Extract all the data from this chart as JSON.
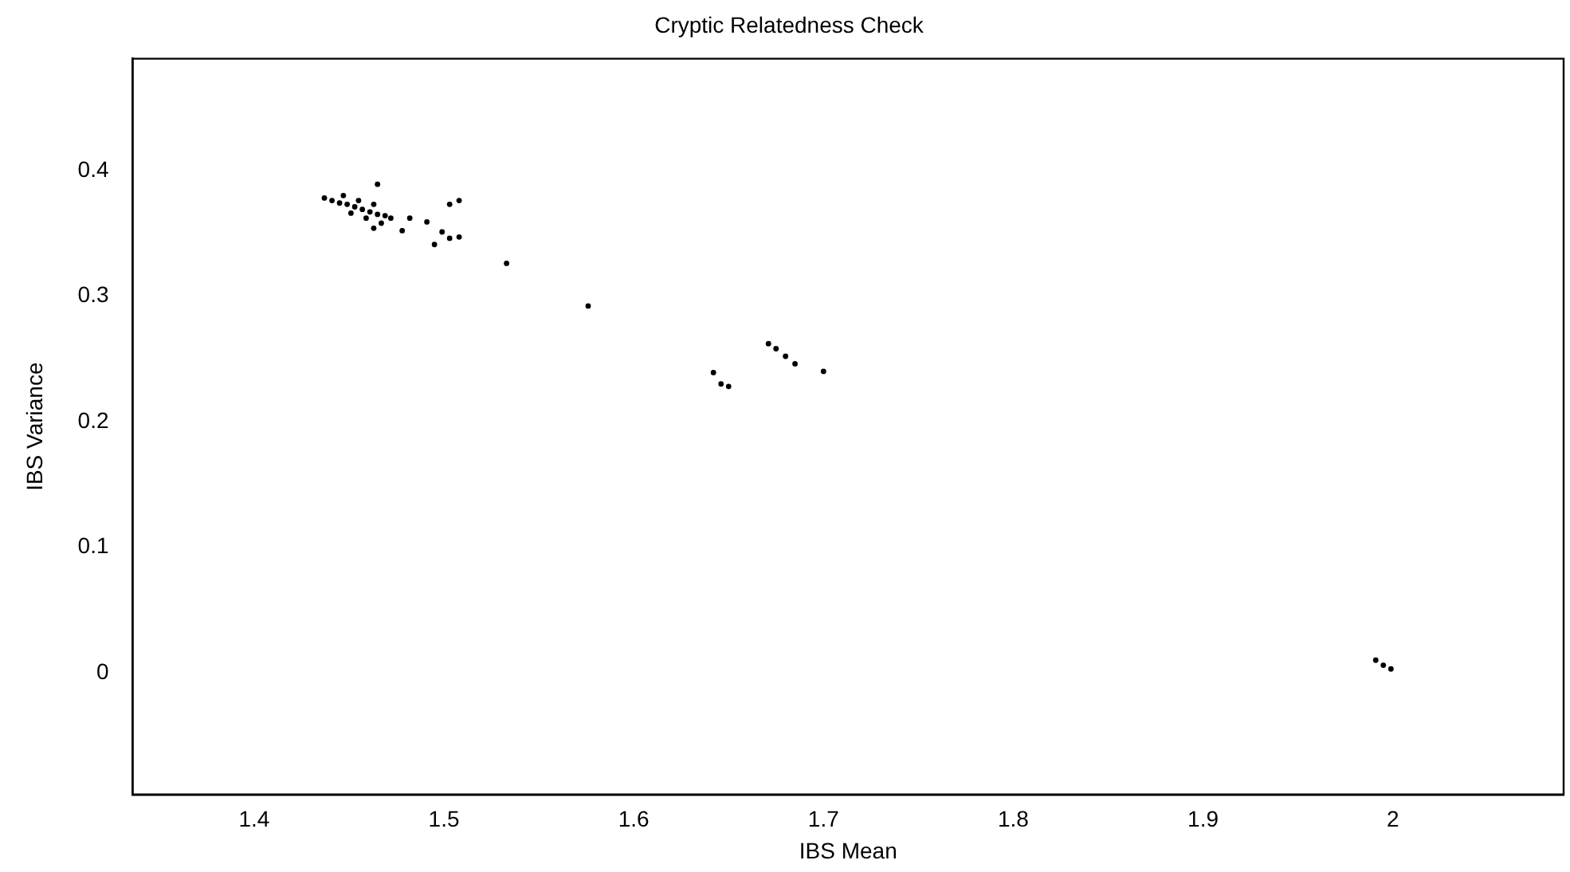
{
  "chart_data": {
    "type": "scatter",
    "title": "Cryptic Relatedness Check",
    "xlabel": "IBS Mean",
    "ylabel": "IBS Variance",
    "x": [
      1.437,
      1.441,
      1.445,
      1.449,
      1.453,
      1.457,
      1.461,
      1.465,
      1.469,
      1.472,
      1.447,
      1.455,
      1.463,
      1.451,
      1.459,
      1.467,
      1.465,
      1.463,
      1.478,
      1.482,
      1.491,
      1.495,
      1.499,
      1.503,
      1.508,
      1.503,
      1.508,
      1.533,
      1.576,
      1.642,
      1.646,
      1.65,
      1.671,
      1.675,
      1.68,
      1.685,
      1.7,
      1.991,
      1.995,
      1.999
    ],
    "values": [
      0.378,
      0.376,
      0.374,
      0.373,
      0.371,
      0.369,
      0.367,
      0.365,
      0.364,
      0.362,
      0.38,
      0.376,
      0.373,
      0.366,
      0.362,
      0.358,
      0.389,
      0.354,
      0.352,
      0.362,
      0.359,
      0.341,
      0.351,
      0.346,
      0.347,
      0.373,
      0.376,
      0.326,
      0.292,
      0.239,
      0.23,
      0.228,
      0.262,
      0.258,
      0.252,
      0.246,
      0.24,
      0.01,
      0.006,
      0.003
    ],
    "color": "#000000",
    "marker": "circle",
    "grid": false,
    "legend": false,
    "xlim": [
      1.336,
      2.09
    ],
    "xticks": [
      1.4,
      1.5,
      1.6,
      1.7,
      1.8,
      1.9,
      2
    ],
    "ylim": [
      -0.097,
      0.489
    ],
    "yticks": [
      0,
      0.1,
      0.2,
      0.3,
      0.4
    ]
  }
}
